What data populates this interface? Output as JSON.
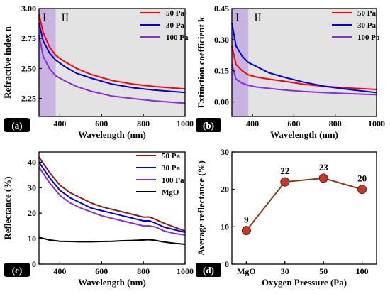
{
  "chart_data": [
    {
      "panel": "(a)",
      "type": "line",
      "xlabel": "Wavelength (nm)",
      "ylabel": "Refractive index n",
      "xlim": [
        300,
        1000
      ],
      "ylim": [
        2.1,
        3.0
      ],
      "xticks": [
        400,
        600,
        800,
        1000
      ],
      "yticks": [
        2.25,
        2.5,
        2.75,
        3.0
      ],
      "ytick_labels": [
        "2.25",
        "2.50",
        "2.75",
        "3.00"
      ],
      "shaded_region": {
        "label": "I",
        "x": [
          300,
          380
        ],
        "color": "#c9b3e0"
      },
      "background_region": {
        "label": "II",
        "x": [
          380,
          1000
        ],
        "color": "#e3e3e3"
      },
      "legend_position": "top-right",
      "x": [
        300,
        320,
        350,
        380,
        420,
        480,
        550,
        650,
        750,
        850,
        1000
      ],
      "series": [
        {
          "name": "50 Pa",
          "color": "#ff0000",
          "values": [
            2.95,
            2.8,
            2.68,
            2.61,
            2.56,
            2.5,
            2.45,
            2.4,
            2.37,
            2.35,
            2.33
          ]
        },
        {
          "name": "30 Pa",
          "color": "#0000e0",
          "values": [
            2.88,
            2.73,
            2.63,
            2.57,
            2.52,
            2.46,
            2.42,
            2.37,
            2.34,
            2.32,
            2.3
          ]
        },
        {
          "name": "100 Pa",
          "color": "#8a2be2",
          "values": [
            2.78,
            2.6,
            2.5,
            2.44,
            2.4,
            2.35,
            2.31,
            2.27,
            2.25,
            2.23,
            2.21
          ]
        }
      ]
    },
    {
      "panel": "(b)",
      "type": "line",
      "xlabel": "Wavelength (nm)",
      "ylabel": "Extinction coefficient k",
      "xlim": [
        300,
        1000
      ],
      "ylim": [
        -0.07,
        0.45
      ],
      "xticks": [
        400,
        600,
        800,
        1000
      ],
      "yticks": [
        0.0,
        0.15,
        0.3,
        0.45
      ],
      "ytick_labels": [
        "0.00",
        "0.15",
        "0.30",
        "0.45"
      ],
      "shaded_region": {
        "label": "I",
        "x": [
          300,
          380
        ],
        "color": "#c9b3e0"
      },
      "background_region": {
        "label": "II",
        "x": [
          380,
          1000
        ],
        "color": "#e3e3e3"
      },
      "legend_position": "top-right",
      "x": [
        300,
        320,
        350,
        380,
        420,
        480,
        550,
        650,
        750,
        850,
        1000
      ],
      "series": [
        {
          "name": "50 Pa",
          "color": "#ff0000",
          "values": [
            0.27,
            0.18,
            0.15,
            0.13,
            0.12,
            0.11,
            0.1,
            0.085,
            0.075,
            0.068,
            0.06
          ]
        },
        {
          "name": "30 Pa",
          "color": "#0000e0",
          "values": [
            0.38,
            0.27,
            0.22,
            0.19,
            0.17,
            0.14,
            0.12,
            0.095,
            0.075,
            0.062,
            0.045
          ]
        },
        {
          "name": "100 Pa",
          "color": "#8a2be2",
          "values": [
            0.18,
            0.11,
            0.09,
            0.08,
            0.072,
            0.065,
            0.058,
            0.05,
            0.045,
            0.04,
            0.035
          ]
        }
      ]
    },
    {
      "panel": "(c)",
      "type": "line",
      "xlabel": "Wavelength (nm)",
      "ylabel": "Reflectance (%)",
      "xlim": [
        300,
        1000
      ],
      "ylim": [
        0,
        44
      ],
      "xticks": [
        400,
        600,
        800,
        1000
      ],
      "yticks": [
        0,
        10,
        20,
        30,
        40
      ],
      "ytick_labels": [
        "0",
        "10",
        "20",
        "30",
        "40"
      ],
      "legend_position": "top-right",
      "x": [
        300,
        350,
        400,
        450,
        500,
        550,
        600,
        650,
        700,
        750,
        800,
        830,
        860,
        900,
        950,
        1000
      ],
      "series": [
        {
          "name": "50 Pa",
          "color": "#8b1a1a",
          "values": [
            42,
            36,
            31,
            28,
            26,
            24,
            22.5,
            21.5,
            20.5,
            19.5,
            18.5,
            18.5,
            17.5,
            16,
            14.5,
            13
          ]
        },
        {
          "name": "30 Pa",
          "color": "#0000e0",
          "values": [
            40,
            34,
            29,
            26,
            24,
            22,
            21,
            20,
            19,
            18,
            17,
            17,
            16,
            14.5,
            13.5,
            12.5
          ]
        },
        {
          "name": "100 Pa",
          "color": "#8a2be2",
          "values": [
            38,
            32,
            27,
            24,
            22,
            20.5,
            19,
            18,
            17,
            16,
            15,
            15,
            14.5,
            13,
            12,
            11.5
          ]
        },
        {
          "name": "MgO",
          "color": "#000000",
          "values": [
            10.5,
            9.5,
            9,
            8.9,
            8.8,
            8.8,
            8.9,
            9,
            9.2,
            9.3,
            9.5,
            9.6,
            9.3,
            8.7,
            8.2,
            7.8
          ]
        }
      ]
    },
    {
      "panel": "(d)",
      "type": "line",
      "xlabel": "Oxygen Pressure (Pa)",
      "ylabel": "Average reflectance (%)",
      "ylim": [
        0,
        30
      ],
      "yticks": [
        0,
        10,
        20,
        30
      ],
      "ytick_labels": [
        "0",
        "10",
        "20",
        "30"
      ],
      "categories": [
        "MgO",
        "30",
        "50",
        "100"
      ],
      "values": [
        9,
        22,
        23,
        20
      ],
      "data_labels": [
        "9",
        "22",
        "23",
        "20"
      ],
      "line_color": "#8b3a1a",
      "marker_color": "#c0392b"
    }
  ]
}
